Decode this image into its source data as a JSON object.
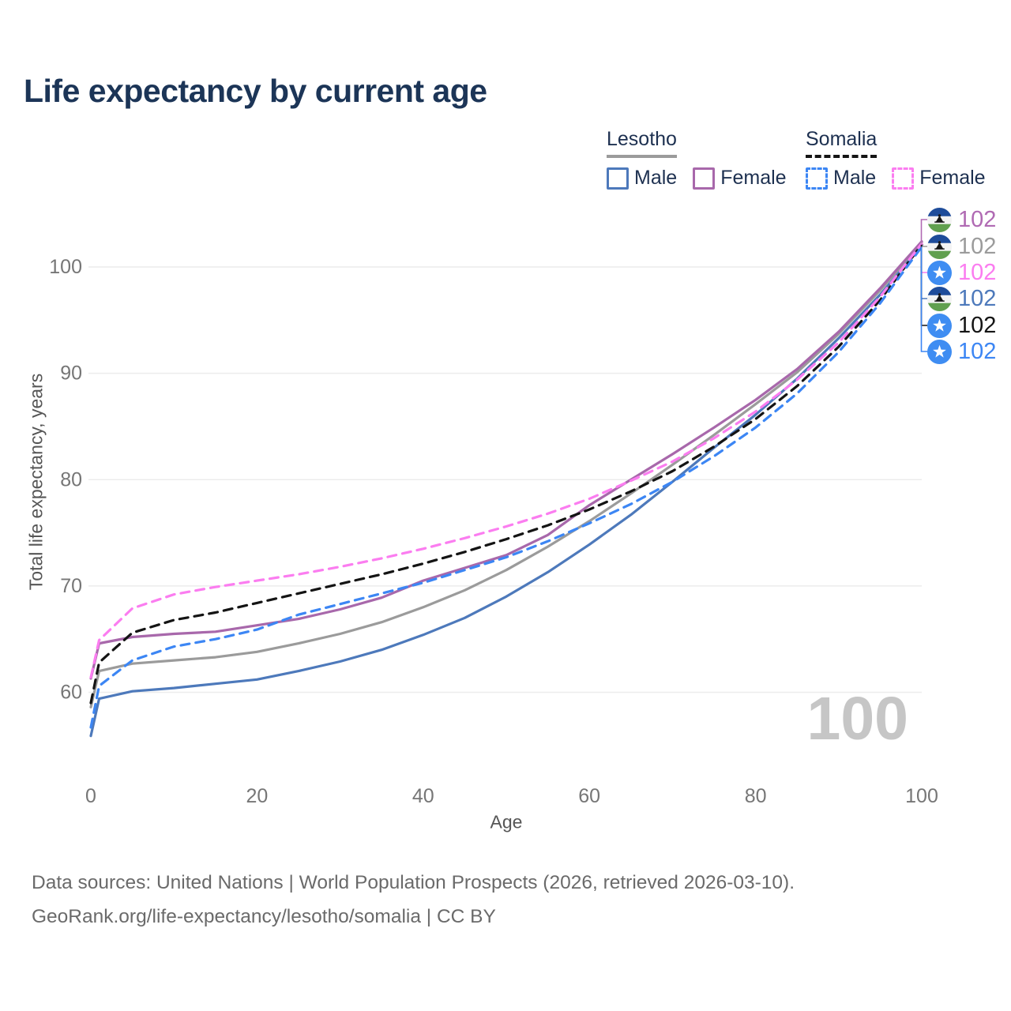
{
  "title": "Life expectancy by current age",
  "watermark": "100",
  "legend": {
    "groups": [
      {
        "country": "Lesotho",
        "line_style": "solid",
        "line_color": "#9b9b9b",
        "items": [
          {
            "label": "Male",
            "color": "#4d79bb",
            "dashed": false
          },
          {
            "label": "Female",
            "color": "#a868ab",
            "dashed": false
          }
        ]
      },
      {
        "country": "Somalia",
        "line_style": "dashed",
        "line_color": "#141414",
        "items": [
          {
            "label": "Male",
            "color": "#3c86f4",
            "dashed": true
          },
          {
            "label": "Female",
            "color": "#fb7df0",
            "dashed": true
          }
        ]
      }
    ]
  },
  "axes": {
    "x": {
      "label": "Age",
      "ticks": [
        0,
        20,
        40,
        60,
        80,
        100
      ],
      "range": [
        0,
        100
      ]
    },
    "y": {
      "label": "Total life expectancy, years",
      "ticks": [
        60,
        70,
        80,
        90,
        100
      ],
      "range": [
        55,
        104
      ]
    }
  },
  "chart_data": {
    "type": "line",
    "title": "Life expectancy by current age",
    "xlabel": "Age",
    "ylabel": "Total life expectancy, years",
    "xlim": [
      0,
      100
    ],
    "ylim": [
      55,
      104
    ],
    "grid": "horizontal only",
    "legend_position": "top-right",
    "x": [
      0,
      1,
      5,
      10,
      15,
      20,
      25,
      30,
      35,
      40,
      45,
      50,
      55,
      60,
      65,
      70,
      75,
      80,
      85,
      90,
      95,
      100
    ],
    "series": [
      {
        "id": "lesotho-both",
        "name": "Lesotho (both sexes)",
        "country": "Lesotho",
        "sex": "Both",
        "color": "#9b9b9b",
        "dashed": false,
        "values": [
          58.6,
          62.0,
          62.7,
          63.0,
          63.3,
          63.8,
          64.6,
          65.5,
          66.6,
          68.0,
          69.6,
          71.5,
          73.7,
          76.1,
          78.7,
          81.4,
          84.2,
          87.1,
          90.1,
          93.7,
          97.8,
          102.3
        ],
        "end_value_label": "102"
      },
      {
        "id": "lesotho-male",
        "name": "Lesotho Male",
        "country": "Lesotho",
        "sex": "Male",
        "color": "#4d79bb",
        "dashed": false,
        "values": [
          55.9,
          59.4,
          60.1,
          60.4,
          60.8,
          61.2,
          62.0,
          62.9,
          64.0,
          65.4,
          67.0,
          69.0,
          71.3,
          73.9,
          76.7,
          79.8,
          83.0,
          86.1,
          89.5,
          93.3,
          97.4,
          102.0
        ],
        "end_value_label": "102"
      },
      {
        "id": "lesotho-female",
        "name": "Lesotho Female",
        "country": "Lesotho",
        "sex": "Female",
        "color": "#a868ab",
        "dashed": false,
        "values": [
          61.3,
          64.6,
          65.2,
          65.5,
          65.7,
          66.3,
          66.9,
          67.8,
          68.9,
          70.5,
          71.7,
          72.9,
          74.8,
          77.6,
          80.0,
          82.4,
          84.9,
          87.5,
          90.4,
          93.9,
          98.0,
          102.4
        ],
        "end_value_label": "102"
      },
      {
        "id": "somalia-both",
        "name": "Somalia (both sexes)",
        "country": "Somalia",
        "sex": "Both",
        "color": "#141414",
        "dashed": true,
        "values": [
          59.0,
          62.8,
          65.6,
          66.8,
          67.5,
          68.4,
          69.3,
          70.2,
          71.1,
          72.1,
          73.2,
          74.4,
          75.7,
          77.2,
          78.9,
          80.8,
          83.1,
          85.7,
          88.8,
          92.5,
          96.9,
          102.1
        ],
        "end_value_label": "102"
      },
      {
        "id": "somalia-male",
        "name": "Somalia Male",
        "country": "Somalia",
        "sex": "Male",
        "color": "#3c86f4",
        "dashed": true,
        "values": [
          56.7,
          60.6,
          63.0,
          64.3,
          65.0,
          65.9,
          67.3,
          68.3,
          69.3,
          70.3,
          71.5,
          72.7,
          74.2,
          75.9,
          77.7,
          79.8,
          82.2,
          84.9,
          88.1,
          92.0,
          96.6,
          101.9
        ],
        "end_value_label": "102"
      },
      {
        "id": "somalia-female",
        "name": "Somalia Female",
        "country": "Somalia",
        "sex": "Female",
        "color": "#fb7df0",
        "dashed": true,
        "values": [
          61.4,
          64.9,
          67.9,
          69.2,
          69.9,
          70.5,
          71.1,
          71.8,
          72.6,
          73.5,
          74.5,
          75.6,
          76.8,
          78.2,
          79.9,
          81.7,
          83.9,
          86.4,
          89.4,
          92.9,
          97.2,
          102.2
        ],
        "end_value_label": "102"
      }
    ]
  },
  "end_labels": [
    {
      "series_id": "lesotho-female",
      "flag": "lesotho",
      "text": "102",
      "color": "#b06ab3"
    },
    {
      "series_id": "lesotho-both",
      "flag": "lesotho",
      "text": "102",
      "color": "#9b9b9b"
    },
    {
      "series_id": "somalia-female",
      "flag": "somalia",
      "text": "102",
      "color": "#fb7df0"
    },
    {
      "series_id": "lesotho-male",
      "flag": "lesotho",
      "text": "102",
      "color": "#4d79bb"
    },
    {
      "series_id": "somalia-both",
      "flag": "somalia",
      "text": "102",
      "color": "#141414"
    },
    {
      "series_id": "somalia-male",
      "flag": "somalia",
      "text": "102",
      "color": "#3c86f4"
    }
  ],
  "footer": {
    "line1": "Data sources: United Nations | World Population Prospects (2026, retrieved 2026-03-10).",
    "line2": "GeoRank.org/life-expectancy/lesotho/somalia | CC BY"
  }
}
